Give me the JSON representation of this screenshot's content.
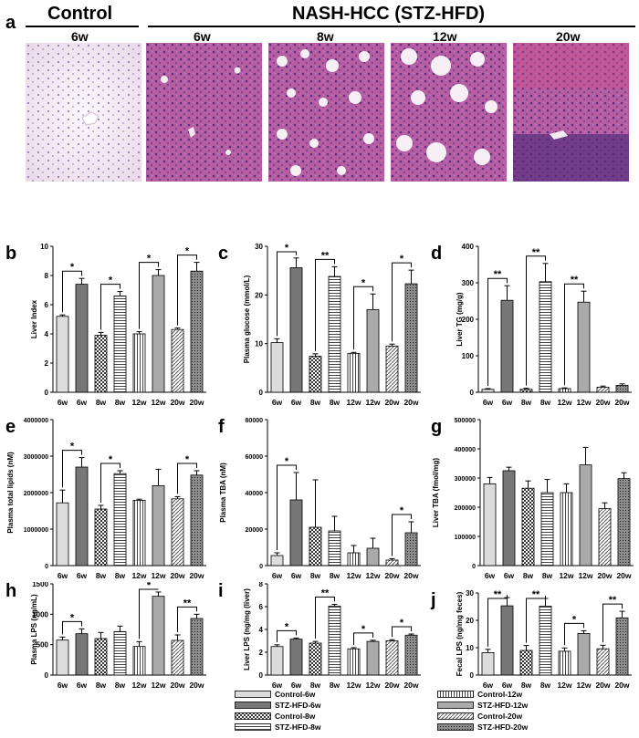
{
  "figure": {
    "panel_a_letter": "a",
    "group_control": "Control",
    "group_nash": "NASH-HCC (STZ-HFD)",
    "timepoints": [
      "6w",
      "6w",
      "8w",
      "12w",
      "20w"
    ],
    "image_tones": [
      "control",
      "nash-6w",
      "nash-8w",
      "nash-12w",
      "nash-20w"
    ]
  },
  "colors": {
    "control": "#f3eef4",
    "nash": "#bd69a8",
    "nash_dark": "#6c3b8c",
    "bar_light": "#dcdcdc",
    "bar_dark": "#777777",
    "bar_mid": "#aaaaaa"
  },
  "legend": [
    {
      "label": "Control-6w",
      "pattern": "light"
    },
    {
      "label": "STZ-HFD-6w",
      "pattern": "dark"
    },
    {
      "label": "Control-8w",
      "pattern": "check"
    },
    {
      "label": "STZ-HFD-8w",
      "pattern": "hstripe"
    },
    {
      "label": "Control-12w",
      "pattern": "vstripe"
    },
    {
      "label": "STZ-HFD-12w",
      "pattern": "mid"
    },
    {
      "label": "Control-20w",
      "pattern": "diag"
    },
    {
      "label": "STZ-HFD-20w",
      "pattern": "dots"
    }
  ],
  "chart_data": [
    {
      "letter": "b",
      "type": "bar",
      "ylabel": "Liver Index",
      "ylim": [
        0,
        10
      ],
      "yticks": [
        "0",
        "2",
        "4",
        "6",
        "8",
        "10"
      ],
      "categories": [
        "6w",
        "6w",
        "8w",
        "8w",
        "12w",
        "12w",
        "20w",
        "20w"
      ],
      "values": [
        5.2,
        7.4,
        3.9,
        6.6,
        4.0,
        8.0,
        4.3,
        8.3
      ],
      "errors": [
        0.1,
        0.4,
        0.2,
        0.3,
        0.15,
        0.4,
        0.1,
        0.6
      ],
      "sig": [
        [
          "*",
          0,
          1
        ],
        [
          "*",
          2,
          3
        ],
        [
          "*",
          4,
          5
        ],
        [
          "*",
          6,
          7
        ]
      ]
    },
    {
      "letter": "c",
      "type": "bar",
      "ylabel": "Plasma glucose (mmol/L)",
      "ylim": [
        0,
        30
      ],
      "yticks": [
        "0",
        "10",
        "20",
        "30"
      ],
      "categories": [
        "6w",
        "6w",
        "8w",
        "8w",
        "12w",
        "12w",
        "20w",
        "20w"
      ],
      "values": [
        10.2,
        25.6,
        7.4,
        23.8,
        8.0,
        17.0,
        9.5,
        22.3
      ],
      "errors": [
        0.8,
        2.0,
        0.5,
        2.0,
        0.2,
        3.2,
        0.4,
        2.8
      ],
      "sig": [
        [
          "*",
          0,
          1
        ],
        [
          "**",
          2,
          3
        ],
        [
          "*",
          4,
          5
        ],
        [
          "*",
          6,
          7
        ]
      ]
    },
    {
      "letter": "d",
      "type": "bar",
      "ylabel": "Liver TG (mg/g)",
      "ylim": [
        0,
        400
      ],
      "yticks": [
        "0",
        "100",
        "200",
        "300",
        "400"
      ],
      "categories": [
        "6w",
        "6w",
        "8w",
        "8w",
        "12w",
        "12w",
        "20w",
        "20w"
      ],
      "values": [
        8,
        252,
        8,
        303,
        10,
        247,
        14,
        19
      ],
      "errors": [
        2,
        40,
        3,
        50,
        2,
        30,
        3,
        4
      ],
      "sig": [
        [
          "**",
          0,
          1
        ],
        [
          "**",
          2,
          3
        ],
        [
          "**",
          4,
          5
        ]
      ]
    },
    {
      "letter": "e",
      "type": "bar",
      "ylabel": "Plasma total lipids (nM)",
      "ylim": [
        0,
        4000000
      ],
      "yticks": [
        "0",
        "1000000",
        "2000000",
        "3000000",
        "4000000"
      ],
      "categories": [
        "6w",
        "6w",
        "8w",
        "8w",
        "12w",
        "12w",
        "20w",
        "20w"
      ],
      "values": [
        1720000,
        2700000,
        1550000,
        2520000,
        1790000,
        2190000,
        1830000,
        2480000
      ],
      "errors": [
        350000,
        260000,
        100000,
        80000,
        30000,
        450000,
        60000,
        120000
      ],
      "sig": [
        [
          "*",
          0,
          1
        ],
        [
          "*",
          2,
          3
        ],
        [
          "*",
          6,
          7
        ]
      ]
    },
    {
      "letter": "f",
      "type": "bar",
      "ylabel": "Plasma TBA (nM)",
      "ylim": [
        0,
        80000
      ],
      "yticks": [
        "0",
        "20000",
        "40000",
        "60000",
        "80000"
      ],
      "categories": [
        "6w",
        "6w",
        "8w",
        "8w",
        "12w",
        "12w",
        "20w",
        "20w"
      ],
      "values": [
        5500,
        36000,
        21000,
        19000,
        7000,
        9500,
        3000,
        18000
      ],
      "errors": [
        1500,
        15000,
        26000,
        8000,
        4000,
        5500,
        800,
        6000
      ],
      "sig": [
        [
          "*",
          0,
          1
        ],
        [
          "*",
          6,
          7
        ]
      ]
    },
    {
      "letter": "g",
      "type": "bar",
      "ylabel": "Liver TBA (fmol/mg)",
      "ylim": [
        0,
        500000
      ],
      "yticks": [
        "0",
        "100000",
        "200000",
        "300000",
        "400000",
        "500000"
      ],
      "categories": [
        "6w",
        "6w",
        "8w",
        "8w",
        "12w",
        "12w",
        "20w",
        "20w"
      ],
      "values": [
        280000,
        325000,
        265000,
        250000,
        250000,
        345000,
        195000,
        298000
      ],
      "errors": [
        22000,
        12000,
        25000,
        45000,
        30000,
        60000,
        20000,
        20000
      ],
      "sig": []
    },
    {
      "letter": "h",
      "type": "bar",
      "ylabel": "Plasma LPS (ng/mL)",
      "ylim": [
        0,
        1500
      ],
      "yticks": [
        "0",
        "500",
        "1000",
        "1500"
      ],
      "categories": [
        "6w",
        "6w",
        "8w",
        "8w",
        "12w",
        "12w",
        "20w",
        "20w"
      ],
      "values": [
        575,
        680,
        600,
        715,
        470,
        1295,
        570,
        930
      ],
      "errors": [
        50,
        80,
        100,
        90,
        80,
        70,
        90,
        70
      ],
      "sig": [
        [
          "*",
          0,
          1
        ],
        [
          "*",
          4,
          5
        ],
        [
          "**",
          6,
          7
        ]
      ]
    },
    {
      "letter": "i",
      "type": "bar",
      "ylabel": "Liver LPS (ng/mg (liver)",
      "ylim": [
        0,
        8
      ],
      "yticks": [
        "0",
        "2",
        "4",
        "6",
        "8"
      ],
      "categories": [
        "6w",
        "6w",
        "8w",
        "8w",
        "12w",
        "12w",
        "20w",
        "20w"
      ],
      "values": [
        2.5,
        3.15,
        2.8,
        6.05,
        2.3,
        2.95,
        3.0,
        3.5
      ],
      "errors": [
        0.15,
        0.1,
        0.15,
        0.15,
        0.1,
        0.1,
        0.1,
        0.1
      ],
      "sig": [
        [
          "*",
          0,
          1
        ],
        [
          "**",
          2,
          3
        ],
        [
          "*",
          4,
          5
        ],
        [
          "*",
          6,
          7
        ]
      ]
    },
    {
      "letter": "j",
      "type": "bar",
      "ylabel": "Fecal LPS (ng/mg feces)",
      "ylim": [
        0,
        30
      ],
      "yticks": [
        "0",
        "10",
        "20",
        "30"
      ],
      "categories": [
        "6w",
        "6w",
        "8w",
        "8w",
        "12w",
        "12w",
        "20w",
        "20w"
      ],
      "values": [
        8.2,
        25.3,
        9.0,
        25.2,
        8.7,
        15.2,
        9.6,
        20.9
      ],
      "errors": [
        1.2,
        3.0,
        1.8,
        2.8,
        1.2,
        1.0,
        1.3,
        2.4
      ],
      "sig": [
        [
          "**",
          0,
          1
        ],
        [
          "**",
          2,
          3
        ],
        [
          "*",
          4,
          5
        ],
        [
          "**",
          6,
          7
        ]
      ]
    }
  ]
}
